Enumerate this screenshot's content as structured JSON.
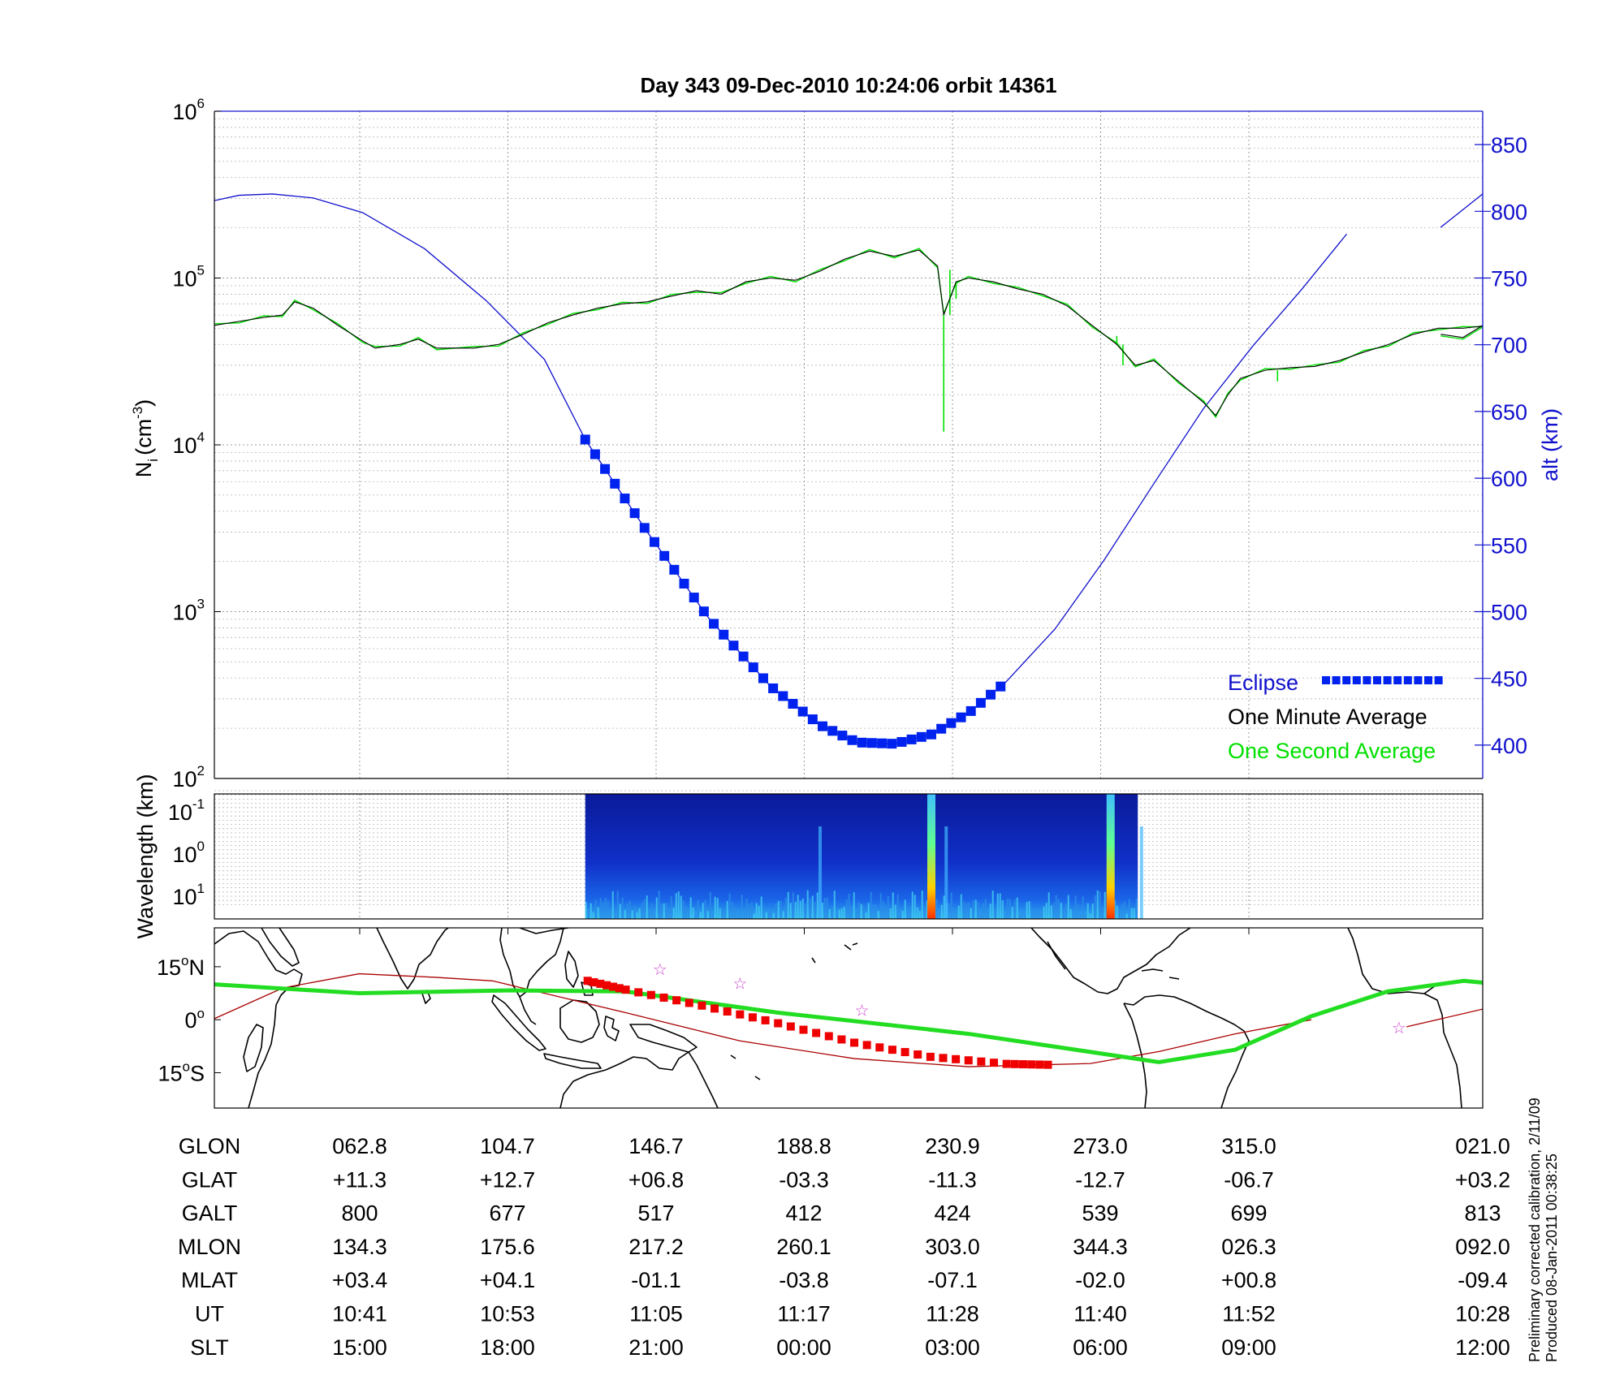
{
  "title": "Day 343  09-Dec-2010 10:24:06   orbit 14361",
  "colors": {
    "altitude": "#1010cc",
    "minute_avg": "#000000",
    "second_avg": "#00e000",
    "eclipse": "#0022ee",
    "track_eclipse": "#ee0000",
    "orbit_track": "#aa0000",
    "magnetic_eq": "#22dd22",
    "stars": "#cc44cc"
  },
  "chart_data": [
    {
      "panel": "ion-density",
      "type": "line",
      "ylabel_left": "N",
      "ylabel_left_sub": "i",
      "ylabel_left_unit": "(cm",
      "ylabel_left_unit_sup": "-3",
      "ylabel_left_unit_close": ")",
      "ylabel_right": "alt (km)",
      "y_left_scale": "log",
      "y_left_range": [
        100,
        1000000
      ],
      "y_left_ticks": [
        {
          "base": "10",
          "exp": "2"
        },
        {
          "base": "10",
          "exp": "3"
        },
        {
          "base": "10",
          "exp": "4"
        },
        {
          "base": "10",
          "exp": "5"
        },
        {
          "base": "10",
          "exp": "6"
        }
      ],
      "y_right_range": [
        375,
        875
      ],
      "y_right_ticks": [
        "400",
        "450",
        "500",
        "550",
        "600",
        "650",
        "700",
        "750",
        "800",
        "850"
      ],
      "x_range_minutes": [
        0,
        102.6
      ],
      "grid": true,
      "legend_position": "bottom-right",
      "legend": [
        {
          "label": "Eclipse",
          "color": "#0022ee"
        },
        {
          "label": "One Minute Average",
          "color": "#000000"
        },
        {
          "label": "One Second Average",
          "color": "#00e000"
        }
      ],
      "altitude_km": [
        {
          "t": 0,
          "alt": 808
        },
        {
          "t": 2,
          "alt": 812
        },
        {
          "t": 4.7,
          "alt": 813
        },
        {
          "t": 8,
          "alt": 810
        },
        {
          "t": 12,
          "alt": 799
        },
        {
          "t": 17,
          "alt": 772
        },
        {
          "t": 22,
          "alt": 733
        },
        {
          "t": 26.7,
          "alt": 689
        },
        {
          "t": 30,
          "alt": 629
        },
        {
          "t": 35,
          "alt": 560
        },
        {
          "t": 40,
          "alt": 495
        },
        {
          "t": 45,
          "alt": 444
        },
        {
          "t": 49,
          "alt": 415
        },
        {
          "t": 52,
          "alt": 402
        },
        {
          "t": 55,
          "alt": 401
        },
        {
          "t": 58,
          "alt": 408
        },
        {
          "t": 61,
          "alt": 424
        },
        {
          "t": 64,
          "alt": 447
        },
        {
          "t": 68,
          "alt": 487
        },
        {
          "t": 72,
          "alt": 539
        },
        {
          "t": 76,
          "alt": 596
        },
        {
          "t": 80,
          "alt": 652
        },
        {
          "t": 84,
          "alt": 699
        },
        {
          "t": 88,
          "alt": 742
        },
        {
          "t": 91.6,
          "alt": 783
        }
      ],
      "altitude_km_end": [
        {
          "t": 99.2,
          "alt": 788
        },
        {
          "t": 102.6,
          "alt": 813
        }
      ],
      "eclipse_span_minutes": [
        30,
        63.8
      ],
      "minute_average": [
        {
          "t": 0,
          "ni": 52000
        },
        {
          "t": 2,
          "ni": 55000
        },
        {
          "t": 4,
          "ni": 58000
        },
        {
          "t": 5.5,
          "ni": 60000
        },
        {
          "t": 6.5,
          "ni": 72000
        },
        {
          "t": 8,
          "ni": 66000
        },
        {
          "t": 10,
          "ni": 52000
        },
        {
          "t": 12,
          "ni": 42000
        },
        {
          "t": 13,
          "ni": 38000
        },
        {
          "t": 15,
          "ni": 40000
        },
        {
          "t": 16.5,
          "ni": 43000
        },
        {
          "t": 18,
          "ni": 38000
        },
        {
          "t": 21,
          "ni": 38000
        },
        {
          "t": 23,
          "ni": 40000
        },
        {
          "t": 25,
          "ni": 46000
        },
        {
          "t": 27,
          "ni": 54000
        },
        {
          "t": 29,
          "ni": 60000
        },
        {
          "t": 31,
          "ni": 66000
        },
        {
          "t": 33,
          "ni": 70000
        },
        {
          "t": 35,
          "ni": 72000
        },
        {
          "t": 37,
          "ni": 78000
        },
        {
          "t": 39,
          "ni": 84000
        },
        {
          "t": 41,
          "ni": 80000
        },
        {
          "t": 43,
          "ni": 95000
        },
        {
          "t": 45,
          "ni": 100000
        },
        {
          "t": 47,
          "ni": 97000
        },
        {
          "t": 49,
          "ni": 110000
        },
        {
          "t": 51,
          "ni": 130000
        },
        {
          "t": 53,
          "ni": 145000
        },
        {
          "t": 55,
          "ni": 135000
        },
        {
          "t": 57,
          "ni": 147000
        },
        {
          "t": 58.5,
          "ni": 118000
        },
        {
          "t": 59,
          "ni": 60000
        },
        {
          "t": 60,
          "ni": 95000
        },
        {
          "t": 61,
          "ni": 100000
        },
        {
          "t": 63,
          "ni": 95000
        },
        {
          "t": 65,
          "ni": 86000
        },
        {
          "t": 67,
          "ni": 80000
        },
        {
          "t": 69,
          "ni": 68000
        },
        {
          "t": 71,
          "ni": 52000
        },
        {
          "t": 73,
          "ni": 40000
        },
        {
          "t": 74.5,
          "ni": 30000
        },
        {
          "t": 76,
          "ni": 32000
        },
        {
          "t": 78,
          "ni": 24000
        },
        {
          "t": 80,
          "ni": 18000
        },
        {
          "t": 81,
          "ni": 15000
        },
        {
          "t": 82,
          "ni": 20000
        },
        {
          "t": 83,
          "ni": 25000
        },
        {
          "t": 85,
          "ni": 28000
        },
        {
          "t": 87,
          "ni": 29000
        },
        {
          "t": 89,
          "ni": 29500
        },
        {
          "t": 91,
          "ni": 32000
        },
        {
          "t": 93,
          "ni": 36000
        },
        {
          "t": 95,
          "ni": 40000
        },
        {
          "t": 97,
          "ni": 46000
        },
        {
          "t": 99,
          "ni": 50000
        },
        {
          "t": 101,
          "ni": 50000
        },
        {
          "t": 103,
          "ni": 52000
        },
        {
          "t": 105,
          "ni": 54000
        },
        {
          "t": 107,
          "ni": 56000
        },
        {
          "t": 108.5,
          "ni": 53000
        }
      ],
      "minute_average_end": [
        {
          "t": 99.2,
          "ni": 46000
        },
        {
          "t": 101,
          "ni": 44000
        },
        {
          "t": 102.6,
          "ni": 52000
        }
      ],
      "second_average_spikes": [
        {
          "t": 59,
          "ni": 12000
        },
        {
          "t": 59.5,
          "ni": 112000
        },
        {
          "t": 60,
          "ni": 75000
        },
        {
          "t": 73,
          "ni": 45000
        },
        {
          "t": 73.5,
          "ni": 30000
        },
        {
          "t": 86,
          "ni": 24000
        }
      ]
    },
    {
      "panel": "wavelength-spectrogram",
      "type": "heatmap",
      "ylabel": "Wavelength (km)",
      "y_ticks": [
        {
          "base": "10",
          "exp": "-1"
        },
        {
          "base": "10",
          "exp": "0"
        },
        {
          "base": "10",
          "exp": "1"
        }
      ],
      "data_span_minutes": [
        30,
        74.7
      ],
      "bright_bands_minutes": [
        49,
        58,
        59.2,
        72.5,
        75
      ]
    },
    {
      "panel": "ground-track-map",
      "type": "line",
      "y_ticks": [
        {
          "value": "15",
          "suffix": "N"
        },
        {
          "value": "0",
          "suffix": ""
        },
        {
          "value": "15",
          "suffix": "S"
        }
      ],
      "lat_range": [
        -25,
        26
      ],
      "lon_range": [
        52,
        385
      ],
      "orbit_track": [
        {
          "lon": 52,
          "lat": 0.3
        },
        {
          "lon": 70,
          "lat": 9
        },
        {
          "lon": 90,
          "lat": 13
        },
        {
          "lon": 110,
          "lat": 12
        },
        {
          "lon": 125,
          "lat": 11
        },
        {
          "lon": 160,
          "lat": 2
        },
        {
          "lon": 190,
          "lat": -6
        },
        {
          "lon": 220,
          "lat": -11
        },
        {
          "lon": 250,
          "lat": -13.3
        },
        {
          "lon": 282,
          "lat": -12.4
        },
        {
          "lon": 300,
          "lat": -9
        },
        {
          "lon": 320,
          "lat": -4
        },
        {
          "lon": 340,
          "lat": 0
        }
      ],
      "orbit_track_end": [
        {
          "lon": 365,
          "lat": -2
        },
        {
          "lon": 385,
          "lat": 3
        }
      ],
      "eclipse_track": [
        {
          "lon": 150,
          "lat": 11
        },
        {
          "lon": 160,
          "lat": 8.5
        },
        {
          "lon": 180,
          "lat": 4
        },
        {
          "lon": 200,
          "lat": -1
        },
        {
          "lon": 220,
          "lat": -6.5
        },
        {
          "lon": 240,
          "lat": -10.5
        },
        {
          "lon": 260,
          "lat": -12.5
        },
        {
          "lon": 273,
          "lat": -12.8
        }
      ],
      "magnetic_equator": [
        {
          "lon": 52,
          "lat": 10
        },
        {
          "lon": 90,
          "lat": 7.5
        },
        {
          "lon": 130,
          "lat": 8.3
        },
        {
          "lon": 160,
          "lat": 8
        },
        {
          "lon": 200,
          "lat": 2
        },
        {
          "lon": 250,
          "lat": -4
        },
        {
          "lon": 300,
          "lat": -12
        },
        {
          "lon": 320,
          "lat": -8.5
        },
        {
          "lon": 340,
          "lat": 1
        },
        {
          "lon": 360,
          "lat": 8
        },
        {
          "lon": 380,
          "lat": 11
        },
        {
          "lon": 385,
          "lat": 10.5
        }
      ],
      "stars": [
        {
          "lon": 169,
          "lat": 14
        },
        {
          "lon": 190,
          "lat": 10
        },
        {
          "lon": 222,
          "lat": 2.5
        },
        {
          "lon": 363,
          "lat": -2.5
        }
      ]
    }
  ],
  "table": {
    "row_labels": [
      "GLON",
      "GLAT",
      "GALT",
      "MLON",
      "MLAT",
      "UT",
      "SLT"
    ],
    "columns": [
      [
        "062.8",
        "+11.3",
        "800",
        "134.3",
        "+03.4",
        "10:41",
        "15:00"
      ],
      [
        "104.7",
        "+12.7",
        "677",
        "175.6",
        "+04.1",
        "10:53",
        "18:00"
      ],
      [
        "146.7",
        "+06.8",
        "517",
        "217.2",
        "-01.1",
        "11:05",
        "21:00"
      ],
      [
        "188.8",
        "-03.3",
        "412",
        "260.1",
        "-03.8",
        "11:17",
        "00:00"
      ],
      [
        "230.9",
        "-11.3",
        "424",
        "303.0",
        "-07.1",
        "11:28",
        "03:00"
      ],
      [
        "273.0",
        "-12.7",
        "539",
        "344.3",
        "-02.0",
        "11:40",
        "06:00"
      ],
      [
        "315.0",
        "-06.7",
        "699",
        "026.3",
        "+00.8",
        "11:52",
        "09:00"
      ],
      [
        "021.0",
        "+03.2",
        "813",
        "092.0",
        "-09.4",
        "10:28",
        "12:00"
      ]
    ]
  },
  "footnotes": {
    "calibration": "Preliminary corrected calibration, 2/11/09",
    "produced": "Produced 08-Jan-2011 00:38:25"
  }
}
